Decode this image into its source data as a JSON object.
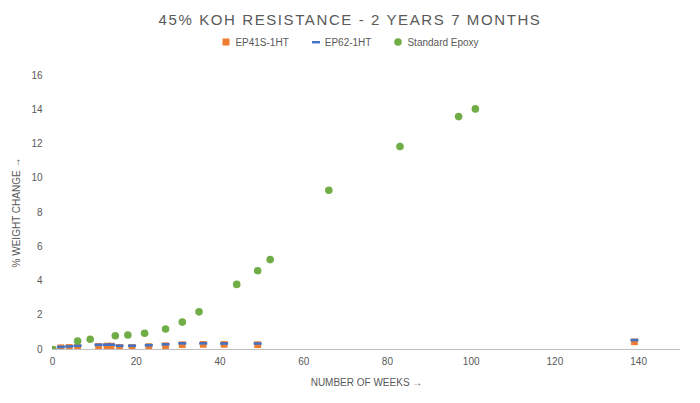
{
  "chart_data": {
    "type": "scatter",
    "title": "45% KOH RESISTANCE - 2 YEARS 7 MONTHS",
    "x_label": "NUMBER OF WEEKS",
    "y_label": "% WEIGHT CHANGE",
    "xlim": [
      0,
      150
    ],
    "ylim": [
      0,
      16
    ],
    "xticks": [
      0,
      20,
      40,
      60,
      80,
      100,
      120,
      140
    ],
    "yticks": [
      0,
      2,
      4,
      6,
      8,
      10,
      12,
      14,
      16
    ],
    "grid": false,
    "legend": "top",
    "series": [
      {
        "name": "EP41S-1HT",
        "color": "#ed7d31",
        "marker": "square",
        "x": [
          0,
          2,
          4,
          6,
          11,
          13,
          14,
          16,
          19,
          23,
          27,
          31,
          36,
          41,
          49,
          139
        ],
        "values": [
          0,
          0.1,
          0.12,
          0.12,
          0.18,
          0.2,
          0.2,
          0.12,
          0.12,
          0.17,
          0.22,
          0.28,
          0.3,
          0.3,
          0.28,
          0.45
        ]
      },
      {
        "name": "EP62-1HT",
        "color": "#4472c4",
        "marker": "dash",
        "x": [
          0,
          2,
          4,
          6,
          11,
          13,
          14,
          16,
          19,
          23,
          27,
          31,
          36,
          41,
          49,
          139
        ],
        "values": [
          0.02,
          0.15,
          0.18,
          0.22,
          0.27,
          0.28,
          0.28,
          0.22,
          0.22,
          0.25,
          0.3,
          0.36,
          0.36,
          0.35,
          0.35,
          0.55
        ]
      },
      {
        "name": "Standard Epoxy",
        "color": "#70ad47",
        "marker": "circle",
        "x": [
          0,
          6,
          9,
          15,
          18,
          22,
          27,
          31,
          35,
          44,
          49,
          52,
          66,
          83,
          97,
          101
        ],
        "values": [
          0,
          0.5,
          0.6,
          0.8,
          0.85,
          0.95,
          1.2,
          1.6,
          2.2,
          3.8,
          4.6,
          5.25,
          9.3,
          11.85,
          13.6,
          14.05
        ]
      }
    ]
  }
}
